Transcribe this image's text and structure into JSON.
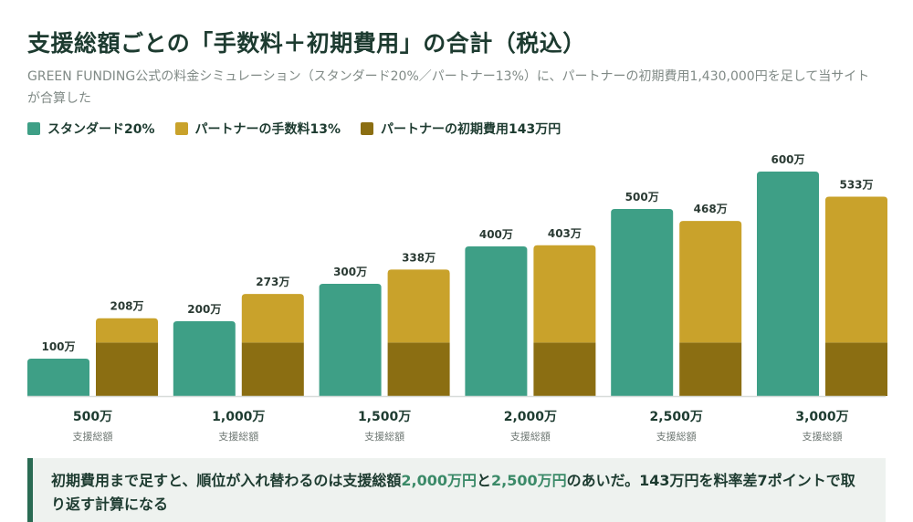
{
  "title": "支援総額ごとの「手数料＋初期費用」の合計（税込）",
  "subtitle": "GREEN FUNDING公式の料金シミュレーション（スタンダード20%／パートナー13%）に、パートナーの初期費用1,430,000円を足して当サイトが合算した",
  "legend": [
    {
      "label": "スタンダード20%",
      "color": "#3e9f86"
    },
    {
      "label": "パートナーの手数料13%",
      "color": "#c9a22b"
    },
    {
      "label": "パートナーの初期費用143万円",
      "color": "#8b6e12"
    }
  ],
  "chart_data": {
    "type": "bar",
    "stacked_second_series": true,
    "categories": [
      "500万",
      "1,000万",
      "1,500万",
      "2,000万",
      "2,500万",
      "3,000万"
    ],
    "category_sublabel": "支援総額",
    "series": [
      {
        "name": "スタンダード20%",
        "values": [
          100,
          200,
          300,
          400,
          500,
          600
        ],
        "color": "#3e9f86",
        "group": "standard"
      },
      {
        "name": "パートナーの初期費用143万円",
        "values": [
          143,
          143,
          143,
          143,
          143,
          143
        ],
        "color": "#8b6e12",
        "group": "partner"
      },
      {
        "name": "パートナーの手数料13%",
        "values": [
          65,
          130,
          195,
          260,
          325,
          390
        ],
        "color": "#c9a22b",
        "group": "partner"
      }
    ],
    "standard_labels": [
      "100万",
      "200万",
      "300万",
      "400万",
      "500万",
      "600万"
    ],
    "partner_labels": [
      "208万",
      "273万",
      "338万",
      "403万",
      "468万",
      "533万"
    ],
    "unit": "万円",
    "ylim": [
      0,
      600
    ]
  },
  "note": {
    "before": "初期費用まで足すと、順位が入れ替わるのは支援総額",
    "hl1": "2,000万円",
    "mid": "と",
    "hl2": "2,500万円",
    "after": "のあいだ。143万円を料率差7ポイントで取り返す計算になる"
  }
}
